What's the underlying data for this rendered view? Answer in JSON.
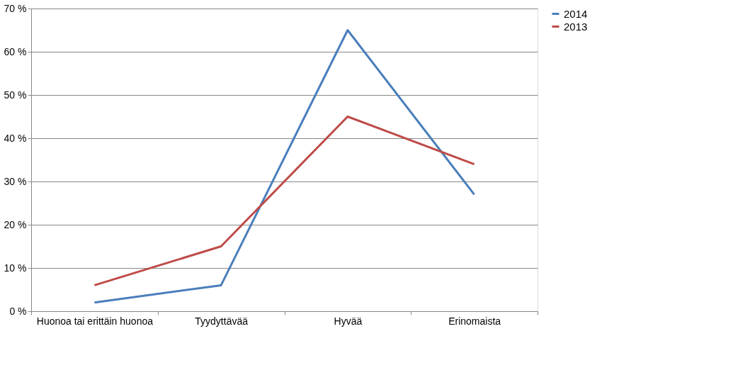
{
  "chart_data": {
    "type": "line",
    "categories": [
      "Huonoa tai erittäin huonoa",
      "Tyydyttävää",
      "Hyvää",
      "Erinomaista"
    ],
    "series": [
      {
        "name": "2014",
        "color": "#4a7ebb",
        "values": [
          2,
          6,
          65,
          27
        ]
      },
      {
        "name": "2013",
        "color": "#be4b48",
        "values": [
          6,
          15,
          45,
          34
        ]
      }
    ],
    "ylim": [
      0,
      70
    ],
    "yticks": [
      {
        "value": 0,
        "label": "0 %"
      },
      {
        "value": 10,
        "label": "10 %"
      },
      {
        "value": 20,
        "label": "20 %"
      },
      {
        "value": 30,
        "label": "30 %"
      },
      {
        "value": 40,
        "label": "40 %"
      },
      {
        "value": 50,
        "label": "50 %"
      },
      {
        "value": 60,
        "label": "60 %"
      },
      {
        "value": 70,
        "label": "70 %"
      }
    ],
    "grid": "y",
    "legend": "right",
    "marker": "none",
    "line_style": "solid"
  }
}
